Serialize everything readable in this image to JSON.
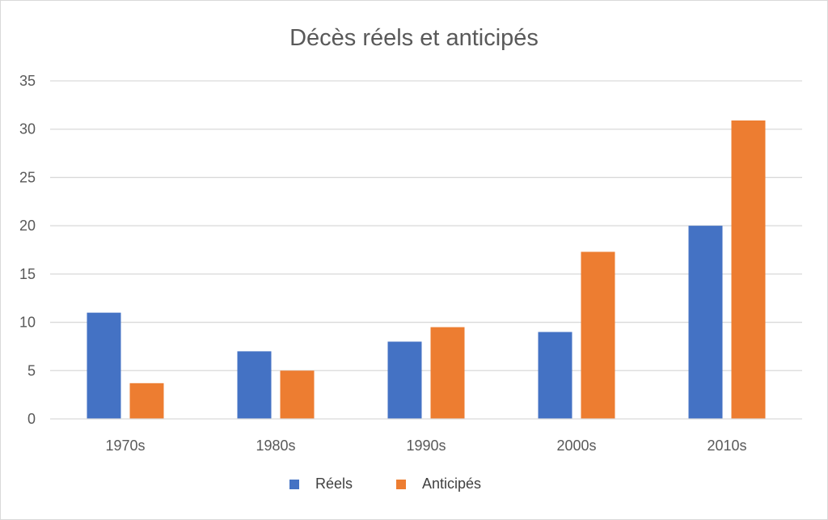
{
  "chart_data": {
    "type": "bar",
    "title": "Décès réels et anticipés",
    "xlabel": "",
    "ylabel": "",
    "categories": [
      "1970s",
      "1980s",
      "1990s",
      "2000s",
      "2010s"
    ],
    "series": [
      {
        "name": "Réels",
        "values": [
          11,
          7,
          8,
          9,
          20
        ],
        "color": "#4472C4"
      },
      {
        "name": "Anticipés",
        "values": [
          3.7,
          5,
          9.5,
          17.3,
          30.9
        ],
        "color": "#ED7D31"
      }
    ],
    "ylim": [
      0,
      35
    ],
    "yticks": [
      "0",
      "5",
      "10",
      "15",
      "20",
      "25",
      "30",
      "35"
    ],
    "grid": true,
    "legend_position": "bottom"
  }
}
